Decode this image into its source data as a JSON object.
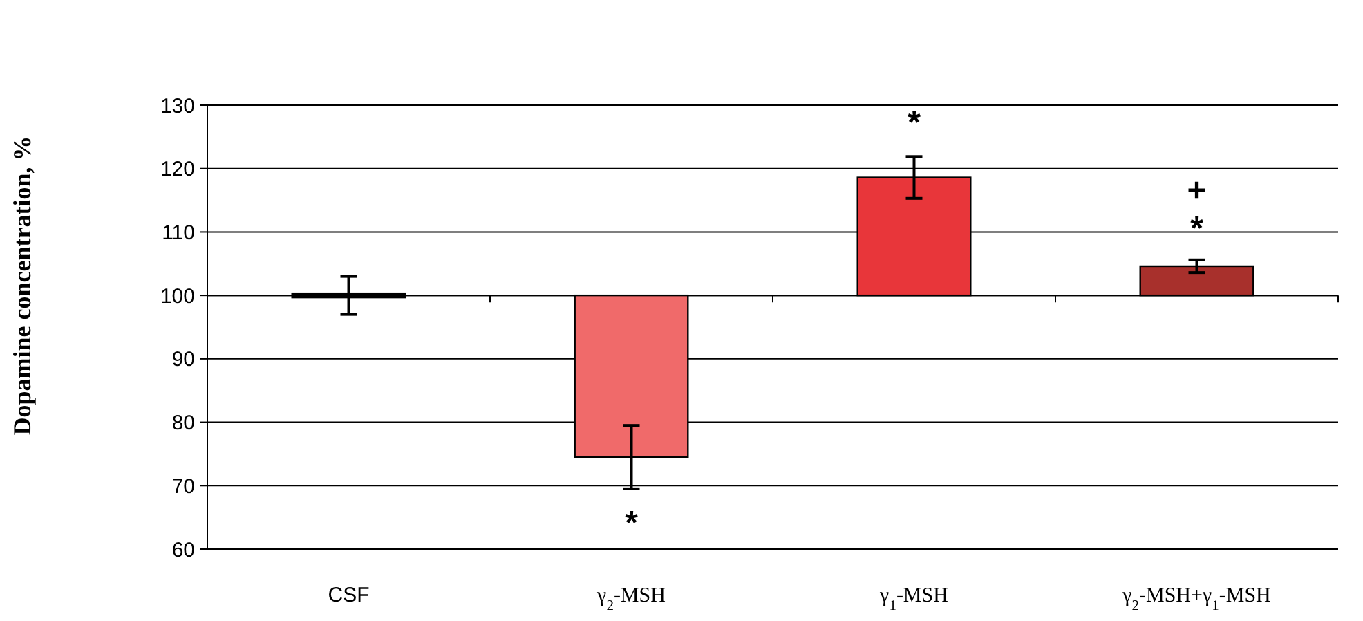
{
  "chart_data": {
    "type": "bar",
    "ylabel": "Dopamine concentration, %",
    "categories": [
      "CSF",
      "γ$_{2}$-MSH",
      "γ$_{1}$-MSH",
      "γ$_{2}$-MSH+γ$_{1}$-MSH"
    ],
    "base": [
      100,
      100,
      100,
      100
    ],
    "values": [
      0,
      -25.5,
      18.6,
      4.6
    ],
    "errors": [
      3,
      5,
      3.3,
      1
    ],
    "colors": [
      "#000000",
      "#f06a6a",
      "#e8363a",
      "#a8302c"
    ],
    "ylim": [
      60,
      130
    ],
    "yticks": [
      60,
      70,
      80,
      90,
      100,
      110,
      120,
      130
    ],
    "grid": "y",
    "ref_lines": [
      {
        "axis": "y",
        "value": 100,
        "color": "#000000"
      }
    ],
    "annotations": [
      "*",
      "*",
      "+",
      "*"
    ]
  }
}
